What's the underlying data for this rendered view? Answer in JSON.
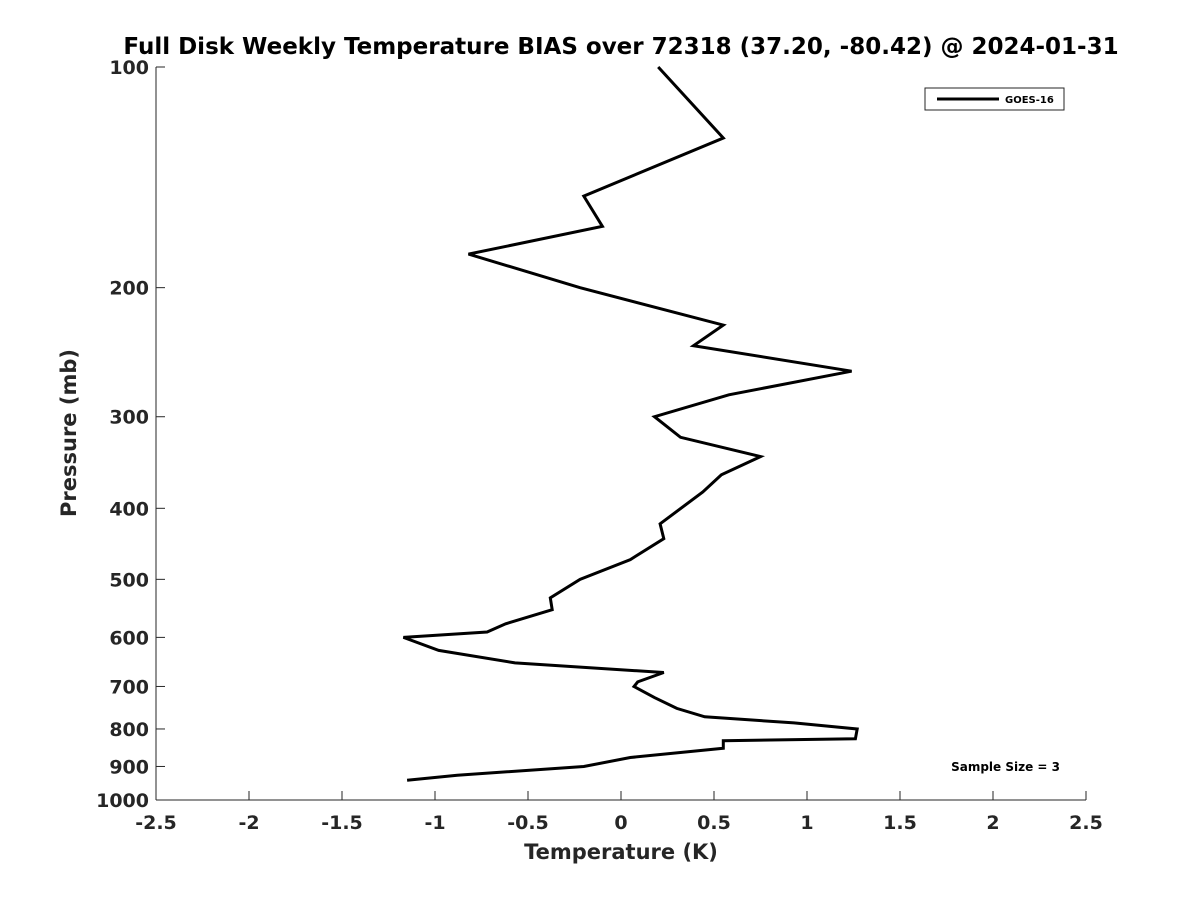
{
  "chart_data": {
    "type": "line",
    "title": "Full Disk Weekly Temperature BIAS over 72318 (37.20, -80.42) @ 2024-01-31",
    "xlabel": "Temperature (K)",
    "ylabel": "Pressure (mb)",
    "xlim": [
      -2.5,
      2.5
    ],
    "ylim": [
      100,
      1000
    ],
    "y_scale": "log",
    "y_reversed": true,
    "x_ticks": [
      -2.5,
      -2,
      -1.5,
      -1,
      -0.5,
      0,
      0.5,
      1,
      1.5,
      2,
      2.5
    ],
    "x_tick_labels": [
      "-2.5",
      "-2",
      "-1.5",
      "-1",
      "-0.5",
      "0",
      "0.5",
      "1",
      "1.5",
      "2",
      "2.5"
    ],
    "y_ticks": [
      100,
      200,
      300,
      400,
      500,
      600,
      700,
      800,
      900,
      1000
    ],
    "y_tick_labels": [
      "100",
      "200",
      "300",
      "400",
      "500",
      "600",
      "700",
      "800",
      "900",
      "1000"
    ],
    "grid": false,
    "legend": {
      "placement": "top-right",
      "entries": [
        "GOES-16"
      ]
    },
    "annotation": "Sample Size = 3",
    "color": "#000000",
    "series": [
      {
        "name": "GOES-16",
        "points": [
          [
            0.2,
            100
          ],
          [
            0.55,
            125
          ],
          [
            -0.2,
            150
          ],
          [
            -0.1,
            165
          ],
          [
            -0.82,
            180
          ],
          [
            -0.22,
            200
          ],
          [
            0.55,
            225
          ],
          [
            0.39,
            240
          ],
          [
            1.24,
            260
          ],
          [
            0.58,
            280
          ],
          [
            0.18,
            300
          ],
          [
            0.32,
            320
          ],
          [
            0.75,
            340
          ],
          [
            0.54,
            360
          ],
          [
            0.44,
            380
          ],
          [
            0.21,
            420
          ],
          [
            0.23,
            440
          ],
          [
            0.05,
            470
          ],
          [
            -0.22,
            500
          ],
          [
            -0.38,
            530
          ],
          [
            -0.37,
            550
          ],
          [
            -0.62,
            575
          ],
          [
            -0.72,
            590
          ],
          [
            -1.17,
            600
          ],
          [
            -0.98,
            625
          ],
          [
            -0.57,
            650
          ],
          [
            0.23,
            670
          ],
          [
            0.09,
            690
          ],
          [
            0.07,
            700
          ],
          [
            0.18,
            725
          ],
          [
            0.3,
            750
          ],
          [
            0.45,
            770
          ],
          [
            0.93,
            785
          ],
          [
            1.27,
            800
          ],
          [
            1.26,
            825
          ],
          [
            0.55,
            830
          ],
          [
            0.55,
            850
          ],
          [
            0.05,
            875
          ],
          [
            -0.2,
            900
          ],
          [
            -0.88,
            925
          ],
          [
            -1.15,
            940
          ]
        ]
      }
    ]
  }
}
